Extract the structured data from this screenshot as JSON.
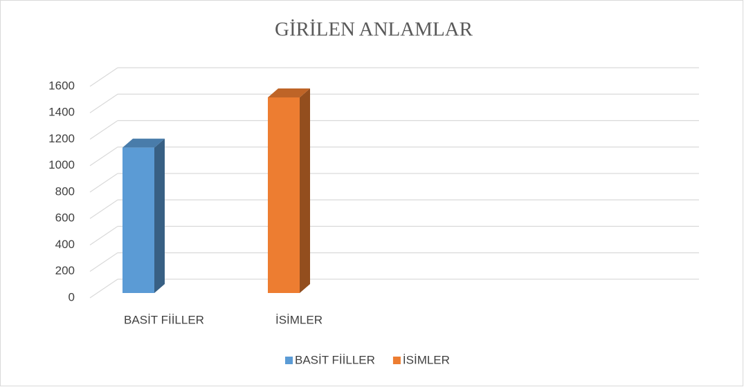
{
  "chart_data": {
    "type": "bar3d",
    "title": "GİRİLEN ANLAMLAR",
    "categories": [
      "BASİT FİİLLER",
      "İSİMLER"
    ],
    "series": [
      {
        "name": "BASİT FİİLLER",
        "color": "#5b9bd5",
        "values": [
          1100,
          null
        ]
      },
      {
        "name": "İSİMLER",
        "color": "#ed7d31",
        "values": [
          null,
          1480
        ]
      }
    ],
    "ylim": [
      0,
      1600
    ],
    "yticks": [
      0,
      200,
      400,
      600,
      800,
      1000,
      1200,
      1400,
      1600
    ],
    "grid": true,
    "legend": "bottom"
  }
}
